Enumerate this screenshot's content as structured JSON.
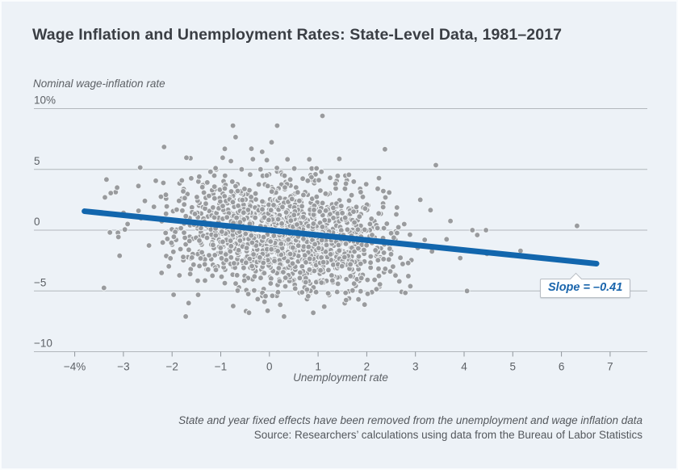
{
  "figure": {
    "footnote": "State and year fixed effects have been removed from the unemployment and wage inflation data",
    "source": "Source: Researchers’ calculations using data from the Bureau of Labor Statistics"
  },
  "chart_data": {
    "type": "scatter",
    "title": "Wage Inflation and Unemployment Rates: State-Level Data, 1981–2017",
    "xlabel": "Unemployment rate",
    "ylabel": "Nominal wage-inflation rate",
    "xlim": [
      -4.85,
      7.78
    ],
    "ylim": [
      -10,
      10
    ],
    "grid": "horizontal",
    "legend": "none",
    "x_ticks": {
      "values": [
        -4,
        -3,
        -2,
        -1,
        0,
        1,
        2,
        3,
        4,
        5,
        6,
        7
      ],
      "labels": [
        "−4%",
        "−3",
        "−2",
        "−1",
        "0",
        "1",
        "2",
        "3",
        "4",
        "5",
        "6",
        "7"
      ]
    },
    "y_ticks": {
      "values": [
        10,
        5,
        0,
        -5,
        -10
      ],
      "labels": [
        "10%",
        "5",
        "0",
        "−5",
        "−10"
      ]
    },
    "trendline": {
      "slope": -0.41,
      "intercept": 0,
      "x_start": -3.8,
      "x_end": 6.72,
      "label": "Slope = –0.41"
    },
    "scatter": {
      "note": "Dense cloud of ~1,850 state-year points; cloud approximated by seeded gaussian around regression line",
      "n_points": 1500,
      "seed": 7,
      "x_mean": 0.3,
      "x_sd": 1.15,
      "y_sd": 2.3,
      "y_offset": -0.15,
      "outlier_points": [
        [
          1.09,
          9.4
        ],
        [
          -0.75,
          8.6
        ],
        [
          0.16,
          8.6
        ],
        [
          -0.37,
          6.7
        ],
        [
          3.42,
          5.35
        ],
        [
          -3.13,
          3.5
        ],
        [
          -3.26,
          3.05
        ],
        [
          -3.38,
          2.7
        ],
        [
          -2.97,
          0.05
        ],
        [
          -3.4,
          -4.75
        ],
        [
          3.1,
          2.5
        ],
        [
          3.31,
          1.65
        ],
        [
          3.72,
          0.75
        ],
        [
          4.17,
          0.0
        ],
        [
          4.45,
          0.0
        ],
        [
          4.27,
          -0.4
        ],
        [
          3.64,
          -0.75
        ],
        [
          3.19,
          -0.8
        ],
        [
          3.34,
          -1.75
        ],
        [
          3.92,
          -2.3
        ],
        [
          4.47,
          -1.95
        ],
        [
          5.16,
          -1.7
        ],
        [
          6.32,
          0.35
        ],
        [
          4.06,
          -5.0
        ],
        [
          -1.66,
          -6.0
        ],
        [
          -1.72,
          -7.1
        ],
        [
          -0.42,
          -6.8
        ],
        [
          0.3,
          -7.1
        ],
        [
          0.9,
          -6.8
        ]
      ]
    },
    "colors": {
      "background": "#edf2f7",
      "dot": "#999b9e",
      "dot_halo": "#f4f7fa",
      "trend": "#1266ad",
      "grid": "#b2b7bc",
      "tick": "#8f959b",
      "title": "#3a3e44",
      "label": "#5d6166",
      "annotation_text": "#1a65ac"
    }
  }
}
